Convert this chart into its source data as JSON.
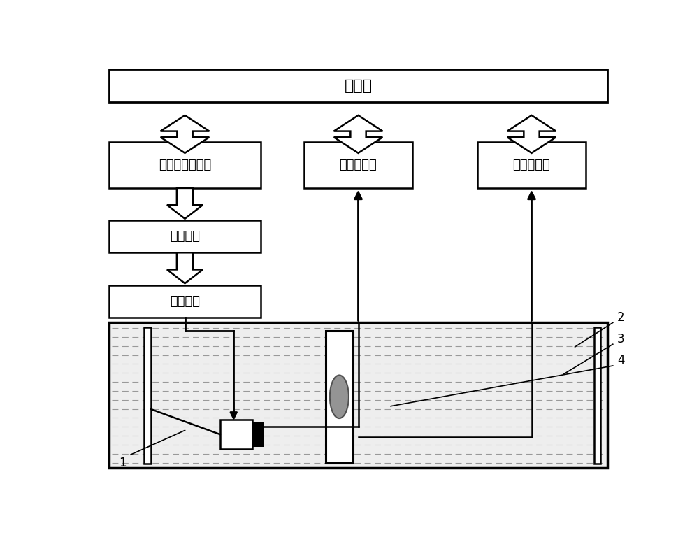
{
  "bg_color": "#ffffff",
  "box_color": "#ffffff",
  "box_edge_color": "#000000",
  "text_color": "#000000",
  "arrow_color": "#000000",
  "title": "工控机",
  "box1_label": "步进电机控制器",
  "box2_label": "超声探伤仪",
  "box3_label": "数据采集卡",
  "box4_label": "步进电机",
  "box5_label": "旋转机构",
  "label1": "1",
  "label2": "2",
  "label3": "3",
  "label4": "4",
  "figsize": [
    10.0,
    7.65
  ],
  "dpi": 100
}
